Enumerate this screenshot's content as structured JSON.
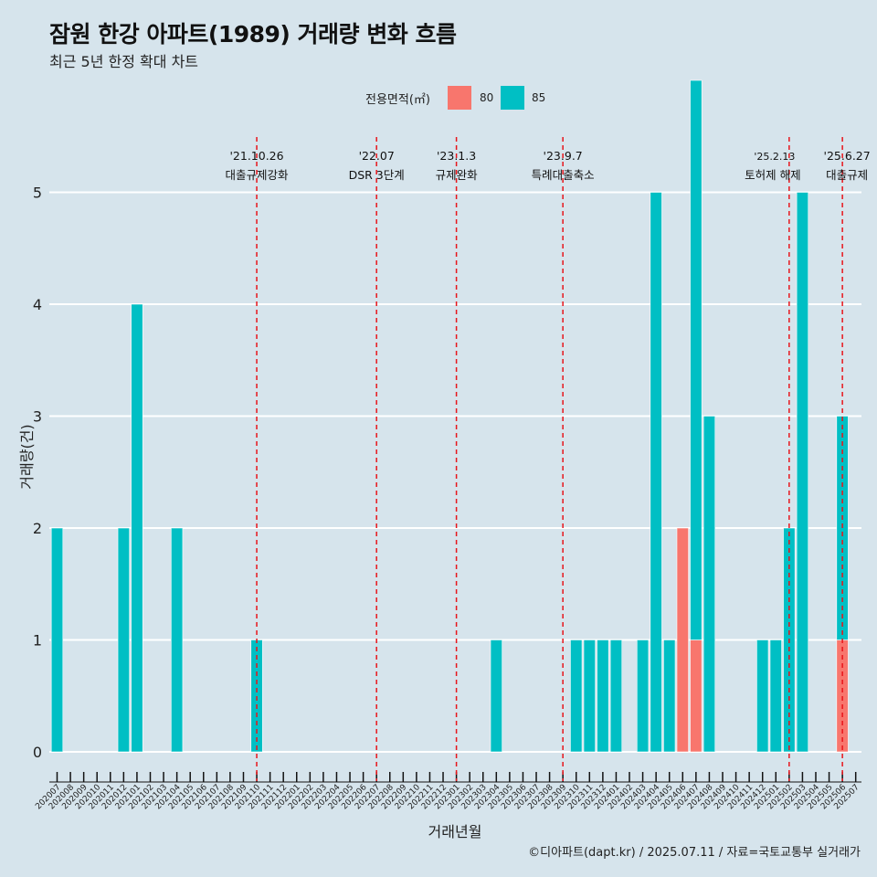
{
  "chart_data": {
    "type": "bar",
    "title": "잠원 한강 아파트(1989) 거래량 변화 흐름",
    "subtitle": "최근 5년 한정 확대 차트",
    "xlabel": "거래년월",
    "ylabel": "거래량(건)",
    "ylim": [
      0,
      5
    ],
    "yticks": [
      0,
      1,
      2,
      3,
      4,
      5
    ],
    "legend": {
      "title": "전용면적(㎡)",
      "placement": "top"
    },
    "categories": [
      "202007",
      "202008",
      "202009",
      "202010",
      "202011",
      "202012",
      "202101",
      "202102",
      "202103",
      "202104",
      "202105",
      "202106",
      "202107",
      "202108",
      "202109",
      "202110",
      "202111",
      "202112",
      "202201",
      "202202",
      "202203",
      "202204",
      "202205",
      "202206",
      "202207",
      "202208",
      "202209",
      "202210",
      "202211",
      "202212",
      "202301",
      "202302",
      "202303",
      "202304",
      "202305",
      "202306",
      "202307",
      "202308",
      "202309",
      "202310",
      "202311",
      "202312",
      "202401",
      "202402",
      "202403",
      "202404",
      "202405",
      "202406",
      "202407",
      "202408",
      "202409",
      "202410",
      "202411",
      "202412",
      "202501",
      "202502",
      "202503",
      "202504",
      "202505",
      "202506",
      "202507"
    ],
    "series": [
      {
        "name": "80",
        "color": "#f8766d",
        "values": [
          0,
          0,
          0,
          0,
          0,
          0,
          0,
          0,
          0,
          0,
          0,
          0,
          0,
          0,
          0,
          0,
          0,
          0,
          0,
          0,
          0,
          0,
          0,
          0,
          0,
          0,
          0,
          0,
          0,
          0,
          0,
          0,
          0,
          0,
          0,
          0,
          0,
          0,
          0,
          0,
          0,
          0,
          0,
          0,
          0,
          0,
          0,
          2,
          1,
          0,
          0,
          0,
          0,
          0,
          0,
          0,
          0,
          0,
          0,
          1,
          0
        ]
      },
      {
        "name": "85",
        "color": "#00bfc4",
        "values": [
          2,
          0,
          0,
          0,
          0,
          2,
          4,
          0,
          0,
          2,
          0,
          0,
          0,
          0,
          0,
          1,
          0,
          0,
          0,
          0,
          0,
          0,
          0,
          0,
          0,
          0,
          0,
          0,
          0,
          0,
          0,
          0,
          0,
          1,
          0,
          0,
          0,
          0,
          0,
          1,
          1,
          1,
          1,
          0,
          1,
          5,
          1,
          0,
          5,
          3,
          0,
          0,
          0,
          1,
          1,
          2,
          5,
          0,
          0,
          2,
          0
        ]
      }
    ],
    "events": [
      {
        "date": "'21.10.26",
        "label": "대출규제강화",
        "category": "202110"
      },
      {
        "date": "'22.07",
        "label": "DSR 3단계",
        "category": "202207"
      },
      {
        "date": "'23.1.3",
        "label": "규제완화",
        "category": "202301"
      },
      {
        "date": "'23.9.7",
        "label": "특례대출축소",
        "category": "202309"
      },
      {
        "date": "'25.2.13",
        "label": "토허제 해제",
        "category": "202502"
      },
      {
        "date": "'25.6.27",
        "label": "대출규제",
        "category": "202506"
      }
    ],
    "grid": true
  },
  "caption": "©디아파트(dapt.kr) / 2025.07.11 / 자료=국토교통부 실거래가"
}
